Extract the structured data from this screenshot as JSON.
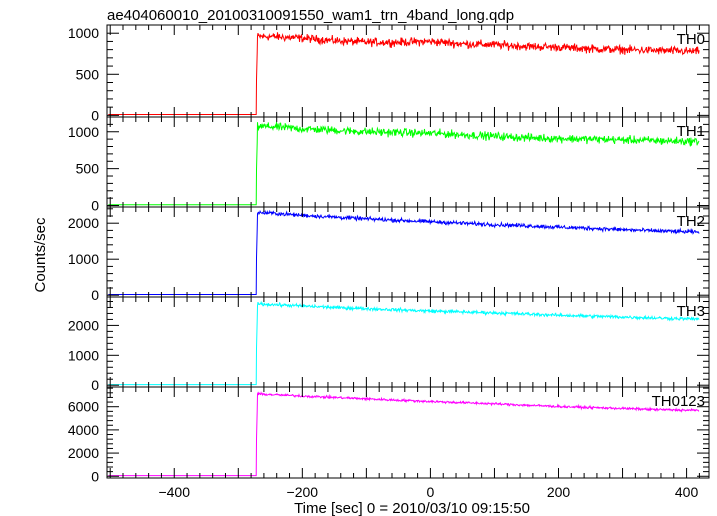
{
  "chart_data": {
    "type": "line",
    "title": "ae404060010_20100310091550_wam1_trn_4band_long.qdp",
    "xlabel": "Time [sec] 0 = 2010/03/10 09:15:50",
    "ylabel": "Counts/sec",
    "xlim": [
      -505,
      435
    ],
    "x_ticks": [
      -400,
      -200,
      0,
      200,
      400
    ],
    "x_tick_labels": [
      "−400",
      "−200",
      "0",
      "200",
      "400"
    ],
    "trigger_time": -272,
    "data_end_time": 420,
    "grid": false,
    "legend": "none",
    "panels": [
      {
        "name": "TH0",
        "color": "#ff0000",
        "ylim": [
          -20,
          1100
        ],
        "y_ticks": [
          0,
          500,
          1000
        ],
        "y_tick_labels": [
          "0",
          "500",
          "1000"
        ],
        "x": [
          -505,
          -275,
          -272,
          -270,
          -250,
          -200,
          -150,
          -100,
          -50,
          0,
          50,
          100,
          150,
          200,
          250,
          300,
          350,
          400,
          420
        ],
        "values": [
          10,
          10,
          10,
          960,
          960,
          940,
          910,
          890,
          890,
          900,
          870,
          860,
          840,
          830,
          810,
          800,
          790,
          780,
          780
        ],
        "noise": 55
      },
      {
        "name": "TH1",
        "color": "#00ff00",
        "ylim": [
          -20,
          1200
        ],
        "y_ticks": [
          0,
          500,
          1000
        ],
        "y_tick_labels": [
          "0",
          "500",
          "1000"
        ],
        "x": [
          -505,
          -275,
          -272,
          -270,
          -250,
          -200,
          -150,
          -100,
          -50,
          0,
          50,
          100,
          150,
          200,
          250,
          300,
          350,
          400,
          420
        ],
        "values": [
          10,
          10,
          10,
          1070,
          1070,
          1040,
          1020,
          1000,
          990,
          980,
          960,
          940,
          920,
          910,
          900,
          890,
          880,
          870,
          870
        ],
        "noise": 60
      },
      {
        "name": "TH2",
        "color": "#0000ff",
        "ylim": [
          -50,
          2450
        ],
        "y_ticks": [
          0,
          1000,
          2000
        ],
        "y_tick_labels": [
          "0",
          "1000",
          "2000"
        ],
        "x": [
          -505,
          -275,
          -272,
          -270,
          -250,
          -200,
          -150,
          -100,
          -50,
          0,
          50,
          100,
          150,
          200,
          250,
          300,
          350,
          400,
          420
        ],
        "values": [
          20,
          20,
          20,
          2290,
          2280,
          2220,
          2170,
          2120,
          2080,
          2040,
          2000,
          1960,
          1930,
          1890,
          1860,
          1820,
          1790,
          1760,
          1750
        ],
        "noise": 60
      },
      {
        "name": "TH3",
        "color": "#00ffff",
        "ylim": [
          -60,
          2950
        ],
        "y_ticks": [
          0,
          1000,
          2000
        ],
        "y_tick_labels": [
          "0",
          "1000",
          "2000"
        ],
        "x": [
          -505,
          -275,
          -272,
          -270,
          -250,
          -200,
          -150,
          -100,
          -50,
          0,
          50,
          100,
          150,
          200,
          250,
          300,
          350,
          400,
          420
        ],
        "values": [
          20,
          20,
          20,
          2720,
          2700,
          2650,
          2600,
          2560,
          2520,
          2480,
          2450,
          2420,
          2380,
          2340,
          2310,
          2280,
          2250,
          2220,
          2220
        ],
        "noise": 60
      },
      {
        "name": "TH0123",
        "color": "#ff00ff",
        "ylim": [
          -150,
          7700
        ],
        "y_ticks": [
          0,
          2000,
          4000,
          6000
        ],
        "y_tick_labels": [
          "0",
          "2000",
          "4000",
          "6000"
        ],
        "x": [
          -505,
          -275,
          -272,
          -270,
          -250,
          -200,
          -150,
          -100,
          -50,
          0,
          50,
          100,
          150,
          200,
          250,
          300,
          350,
          400,
          420
        ],
        "values": [
          60,
          60,
          60,
          7100,
          7050,
          6920,
          6800,
          6680,
          6560,
          6450,
          6350,
          6250,
          6130,
          6020,
          5930,
          5850,
          5760,
          5700,
          5690
        ],
        "noise": 110
      }
    ]
  }
}
